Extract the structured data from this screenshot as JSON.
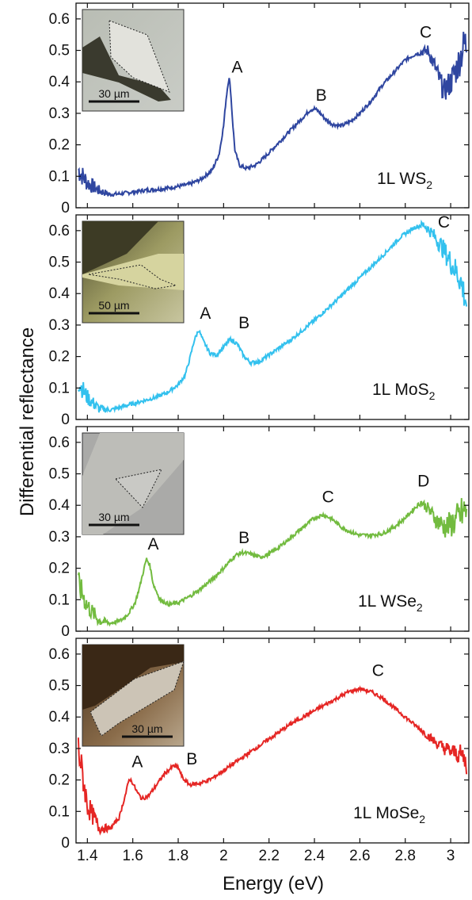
{
  "chart_data": {
    "type": "line",
    "xlabel": "Energy (eV)",
    "ylabel": "Differential reflectance",
    "xlim": [
      1.35,
      3.08
    ],
    "x_ticks": [
      "1.4",
      "1.6",
      "1.8",
      "2",
      "2.2",
      "2.4",
      "2.6",
      "2.8",
      "3"
    ],
    "grid": false,
    "panels": [
      {
        "name": "1L WS2",
        "label_main": "1L WS",
        "label_sub": "2",
        "color": "#2f46a0",
        "ylim": [
          0,
          0.65
        ],
        "y_ticks": [
          "0",
          "0.1",
          "0.2",
          "0.3",
          "0.4",
          "0.5",
          "0.6"
        ],
        "inset_scale": "30 µm",
        "points": [
          [
            1.36,
            0.12
          ],
          [
            1.4,
            0.08
          ],
          [
            1.45,
            0.055
          ],
          [
            1.5,
            0.042
          ],
          [
            1.55,
            0.045
          ],
          [
            1.6,
            0.05
          ],
          [
            1.65,
            0.055
          ],
          [
            1.7,
            0.058
          ],
          [
            1.75,
            0.062
          ],
          [
            1.8,
            0.068
          ],
          [
            1.85,
            0.075
          ],
          [
            1.9,
            0.09
          ],
          [
            1.95,
            0.12
          ],
          [
            1.98,
            0.17
          ],
          [
            2.0,
            0.26
          ],
          [
            2.01,
            0.34
          ],
          [
            2.02,
            0.4
          ],
          [
            2.025,
            0.41
          ],
          [
            2.03,
            0.38
          ],
          [
            2.04,
            0.27
          ],
          [
            2.05,
            0.18
          ],
          [
            2.07,
            0.135
          ],
          [
            2.1,
            0.125
          ],
          [
            2.14,
            0.135
          ],
          [
            2.18,
            0.16
          ],
          [
            2.22,
            0.19
          ],
          [
            2.26,
            0.22
          ],
          [
            2.3,
            0.25
          ],
          [
            2.34,
            0.28
          ],
          [
            2.38,
            0.31
          ],
          [
            2.4,
            0.315
          ],
          [
            2.42,
            0.305
          ],
          [
            2.45,
            0.28
          ],
          [
            2.48,
            0.265
          ],
          [
            2.52,
            0.26
          ],
          [
            2.56,
            0.275
          ],
          [
            2.6,
            0.3
          ],
          [
            2.65,
            0.34
          ],
          [
            2.7,
            0.39
          ],
          [
            2.75,
            0.43
          ],
          [
            2.8,
            0.47
          ],
          [
            2.85,
            0.49
          ],
          [
            2.9,
            0.5
          ],
          [
            2.93,
            0.45
          ],
          [
            2.97,
            0.37
          ],
          [
            3.0,
            0.4
          ],
          [
            3.03,
            0.45
          ],
          [
            3.06,
            0.52
          ]
        ],
        "noise_low": 0.035,
        "noise_high": 0.06,
        "peaks": [
          {
            "label": "A",
            "x": 2.06,
            "y": 0.43
          },
          {
            "label": "B",
            "x": 2.43,
            "y": 0.34
          },
          {
            "label": "C",
            "x": 2.89,
            "y": 0.54
          }
        ]
      },
      {
        "name": "1L MoS2",
        "label_main": "1L MoS",
        "label_sub": "2",
        "color": "#33c1ee",
        "ylim": [
          0,
          0.65
        ],
        "y_ticks": [
          "0",
          "0.1",
          "0.2",
          "0.3",
          "0.4",
          "0.5",
          "0.6"
        ],
        "inset_scale": "50 µm",
        "points": [
          [
            1.36,
            0.12
          ],
          [
            1.4,
            0.07
          ],
          [
            1.45,
            0.035
          ],
          [
            1.5,
            0.03
          ],
          [
            1.55,
            0.04
          ],
          [
            1.6,
            0.05
          ],
          [
            1.65,
            0.06
          ],
          [
            1.7,
            0.07
          ],
          [
            1.75,
            0.085
          ],
          [
            1.8,
            0.11
          ],
          [
            1.83,
            0.14
          ],
          [
            1.85,
            0.19
          ],
          [
            1.87,
            0.25
          ],
          [
            1.89,
            0.285
          ],
          [
            1.91,
            0.25
          ],
          [
            1.94,
            0.21
          ],
          [
            1.97,
            0.205
          ],
          [
            2.0,
            0.23
          ],
          [
            2.03,
            0.255
          ],
          [
            2.06,
            0.24
          ],
          [
            2.09,
            0.2
          ],
          [
            2.12,
            0.18
          ],
          [
            2.16,
            0.185
          ],
          [
            2.2,
            0.205
          ],
          [
            2.3,
            0.255
          ],
          [
            2.4,
            0.315
          ],
          [
            2.5,
            0.38
          ],
          [
            2.6,
            0.45
          ],
          [
            2.7,
            0.52
          ],
          [
            2.78,
            0.58
          ],
          [
            2.84,
            0.61
          ],
          [
            2.88,
            0.62
          ],
          [
            2.92,
            0.59
          ],
          [
            2.96,
            0.55
          ],
          [
            3.0,
            0.5
          ],
          [
            3.04,
            0.45
          ],
          [
            3.07,
            0.37
          ]
        ],
        "noise_low": 0.03,
        "noise_high": 0.05,
        "peaks": [
          {
            "label": "A",
            "x": 1.92,
            "y": 0.32
          },
          {
            "label": "B",
            "x": 2.09,
            "y": 0.29
          },
          {
            "label": "C",
            "x": 2.97,
            "y": 0.61
          }
        ]
      },
      {
        "name": "1L WSe2",
        "label_main": "1L WSe",
        "label_sub": "2",
        "color": "#72bb3f",
        "ylim": [
          0,
          0.65
        ],
        "y_ticks": [
          "0",
          "0.1",
          "0.2",
          "0.3",
          "0.4",
          "0.5",
          "0.6"
        ],
        "inset_scale": "30 µm",
        "points": [
          [
            1.36,
            0.15
          ],
          [
            1.4,
            0.08
          ],
          [
            1.45,
            0.035
          ],
          [
            1.5,
            0.025
          ],
          [
            1.55,
            0.035
          ],
          [
            1.58,
            0.055
          ],
          [
            1.61,
            0.09
          ],
          [
            1.63,
            0.14
          ],
          [
            1.65,
            0.2
          ],
          [
            1.66,
            0.23
          ],
          [
            1.675,
            0.21
          ],
          [
            1.69,
            0.15
          ],
          [
            1.72,
            0.1
          ],
          [
            1.76,
            0.085
          ],
          [
            1.8,
            0.09
          ],
          [
            1.85,
            0.11
          ],
          [
            1.9,
            0.135
          ],
          [
            1.95,
            0.165
          ],
          [
            2.0,
            0.2
          ],
          [
            2.05,
            0.24
          ],
          [
            2.08,
            0.25
          ],
          [
            2.12,
            0.245
          ],
          [
            2.16,
            0.235
          ],
          [
            2.2,
            0.245
          ],
          [
            2.25,
            0.27
          ],
          [
            2.3,
            0.3
          ],
          [
            2.35,
            0.33
          ],
          [
            2.4,
            0.36
          ],
          [
            2.44,
            0.37
          ],
          [
            2.48,
            0.355
          ],
          [
            2.52,
            0.33
          ],
          [
            2.56,
            0.315
          ],
          [
            2.6,
            0.305
          ],
          [
            2.65,
            0.305
          ],
          [
            2.7,
            0.31
          ],
          [
            2.75,
            0.33
          ],
          [
            2.8,
            0.36
          ],
          [
            2.84,
            0.39
          ],
          [
            2.87,
            0.41
          ],
          [
            2.9,
            0.39
          ],
          [
            2.94,
            0.35
          ],
          [
            2.98,
            0.33
          ],
          [
            3.02,
            0.35
          ],
          [
            3.06,
            0.38
          ]
        ],
        "noise_low": 0.04,
        "noise_high": 0.06,
        "peaks": [
          {
            "label": "A",
            "x": 1.69,
            "y": 0.26
          },
          {
            "label": "B",
            "x": 2.09,
            "y": 0.28
          },
          {
            "label": "C",
            "x": 2.46,
            "y": 0.41
          },
          {
            "label": "D",
            "x": 2.88,
            "y": 0.46
          }
        ]
      },
      {
        "name": "1L MoSe2",
        "label_main": "1L MoSe",
        "label_sub": "2",
        "color": "#e52624",
        "ylim": [
          0,
          0.65
        ],
        "y_ticks": [
          "0",
          "0.1",
          "0.2",
          "0.3",
          "0.4",
          "0.5",
          "0.6"
        ],
        "inset_scale": "30 µm",
        "points": [
          [
            1.36,
            0.3
          ],
          [
            1.4,
            0.12
          ],
          [
            1.45,
            0.05
          ],
          [
            1.5,
            0.045
          ],
          [
            1.54,
            0.08
          ],
          [
            1.57,
            0.16
          ],
          [
            1.585,
            0.205
          ],
          [
            1.6,
            0.19
          ],
          [
            1.62,
            0.16
          ],
          [
            1.64,
            0.14
          ],
          [
            1.67,
            0.15
          ],
          [
            1.7,
            0.18
          ],
          [
            1.74,
            0.22
          ],
          [
            1.78,
            0.245
          ],
          [
            1.8,
            0.24
          ],
          [
            1.82,
            0.205
          ],
          [
            1.85,
            0.185
          ],
          [
            1.9,
            0.19
          ],
          [
            1.95,
            0.205
          ],
          [
            2.0,
            0.23
          ],
          [
            2.1,
            0.28
          ],
          [
            2.2,
            0.33
          ],
          [
            2.3,
            0.38
          ],
          [
            2.4,
            0.42
          ],
          [
            2.5,
            0.46
          ],
          [
            2.55,
            0.48
          ],
          [
            2.6,
            0.49
          ],
          [
            2.65,
            0.48
          ],
          [
            2.7,
            0.46
          ],
          [
            2.75,
            0.43
          ],
          [
            2.8,
            0.4
          ],
          [
            2.85,
            0.37
          ],
          [
            2.9,
            0.34
          ],
          [
            2.95,
            0.31
          ],
          [
            3.0,
            0.29
          ],
          [
            3.05,
            0.28
          ],
          [
            3.07,
            0.25
          ]
        ],
        "noise_low": 0.05,
        "noise_high": 0.03,
        "peaks": [
          {
            "label": "A",
            "x": 1.62,
            "y": 0.24
          },
          {
            "label": "B",
            "x": 1.86,
            "y": 0.25
          },
          {
            "label": "C",
            "x": 2.68,
            "y": 0.53
          }
        ]
      }
    ]
  }
}
